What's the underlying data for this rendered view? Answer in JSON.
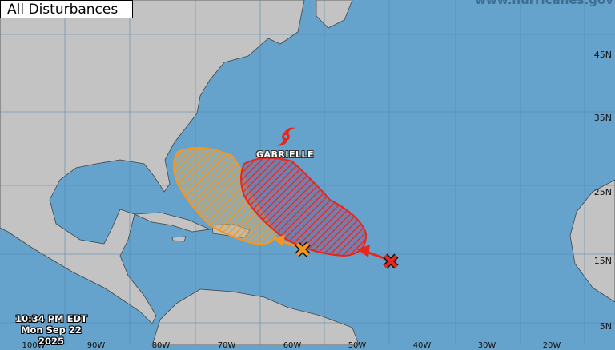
{
  "title": "All Disturbances",
  "source_url": "www.hurricanes.gov",
  "timestamp": {
    "time": "10:34 PM EDT",
    "date": "Mon Sep 22 2025"
  },
  "latitude_labels": [
    "45N",
    "35N",
    "25N",
    "15N",
    "5N"
  ],
  "longitude_labels": [
    "100W",
    "90W",
    "80W",
    "70W",
    "60W",
    "50W",
    "40W",
    "30W",
    "20W"
  ],
  "storm": {
    "name": "GABRIELLE",
    "icon": "hurricane-icon",
    "color": "#e8261c"
  },
  "disturbances": [
    {
      "id": "orange-area",
      "color": "#f5961e",
      "marker": "x-icon"
    },
    {
      "id": "red-area",
      "color": "#e8261c",
      "marker": "x-icon"
    }
  ],
  "colors": {
    "ocean": "#66a3cc",
    "land": "#c3c3c3",
    "border": "#555555"
  }
}
